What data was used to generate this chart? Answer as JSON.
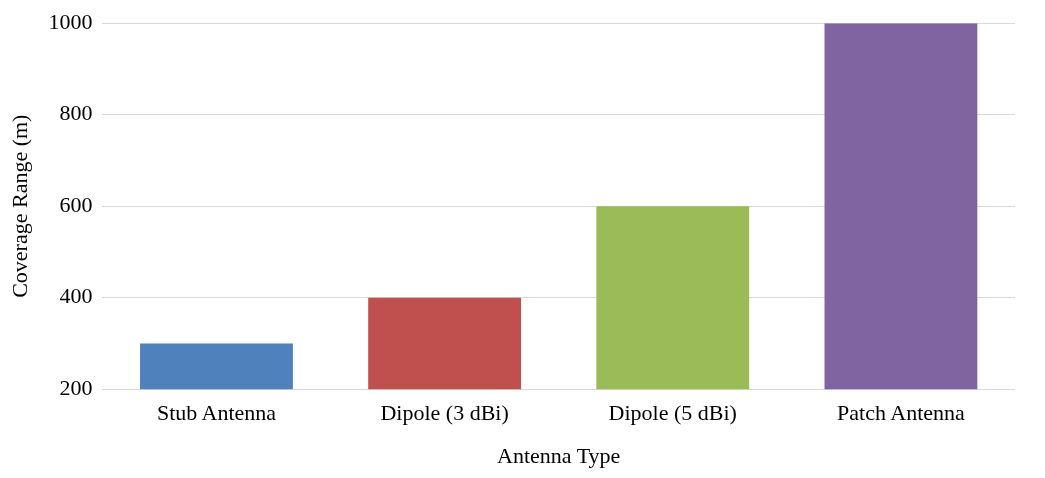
{
  "chart_data": {
    "type": "bar",
    "xlabel": "Antenna Type",
    "ylabel": "Coverage Range (m)",
    "categories": [
      "Stub Antenna",
      "Dipole (3 dBi)",
      "Dipole (5 dBi)",
      "Patch Antenna"
    ],
    "values": [
      300,
      400,
      600,
      1000
    ],
    "colors": [
      "#4f81bd",
      "#c0504d",
      "#9bbb59",
      "#8064a2"
    ],
    "ylim": [
      200,
      1000
    ],
    "yticks": [
      200,
      400,
      600,
      800,
      1000
    ],
    "grid": "y",
    "legend": false
  }
}
